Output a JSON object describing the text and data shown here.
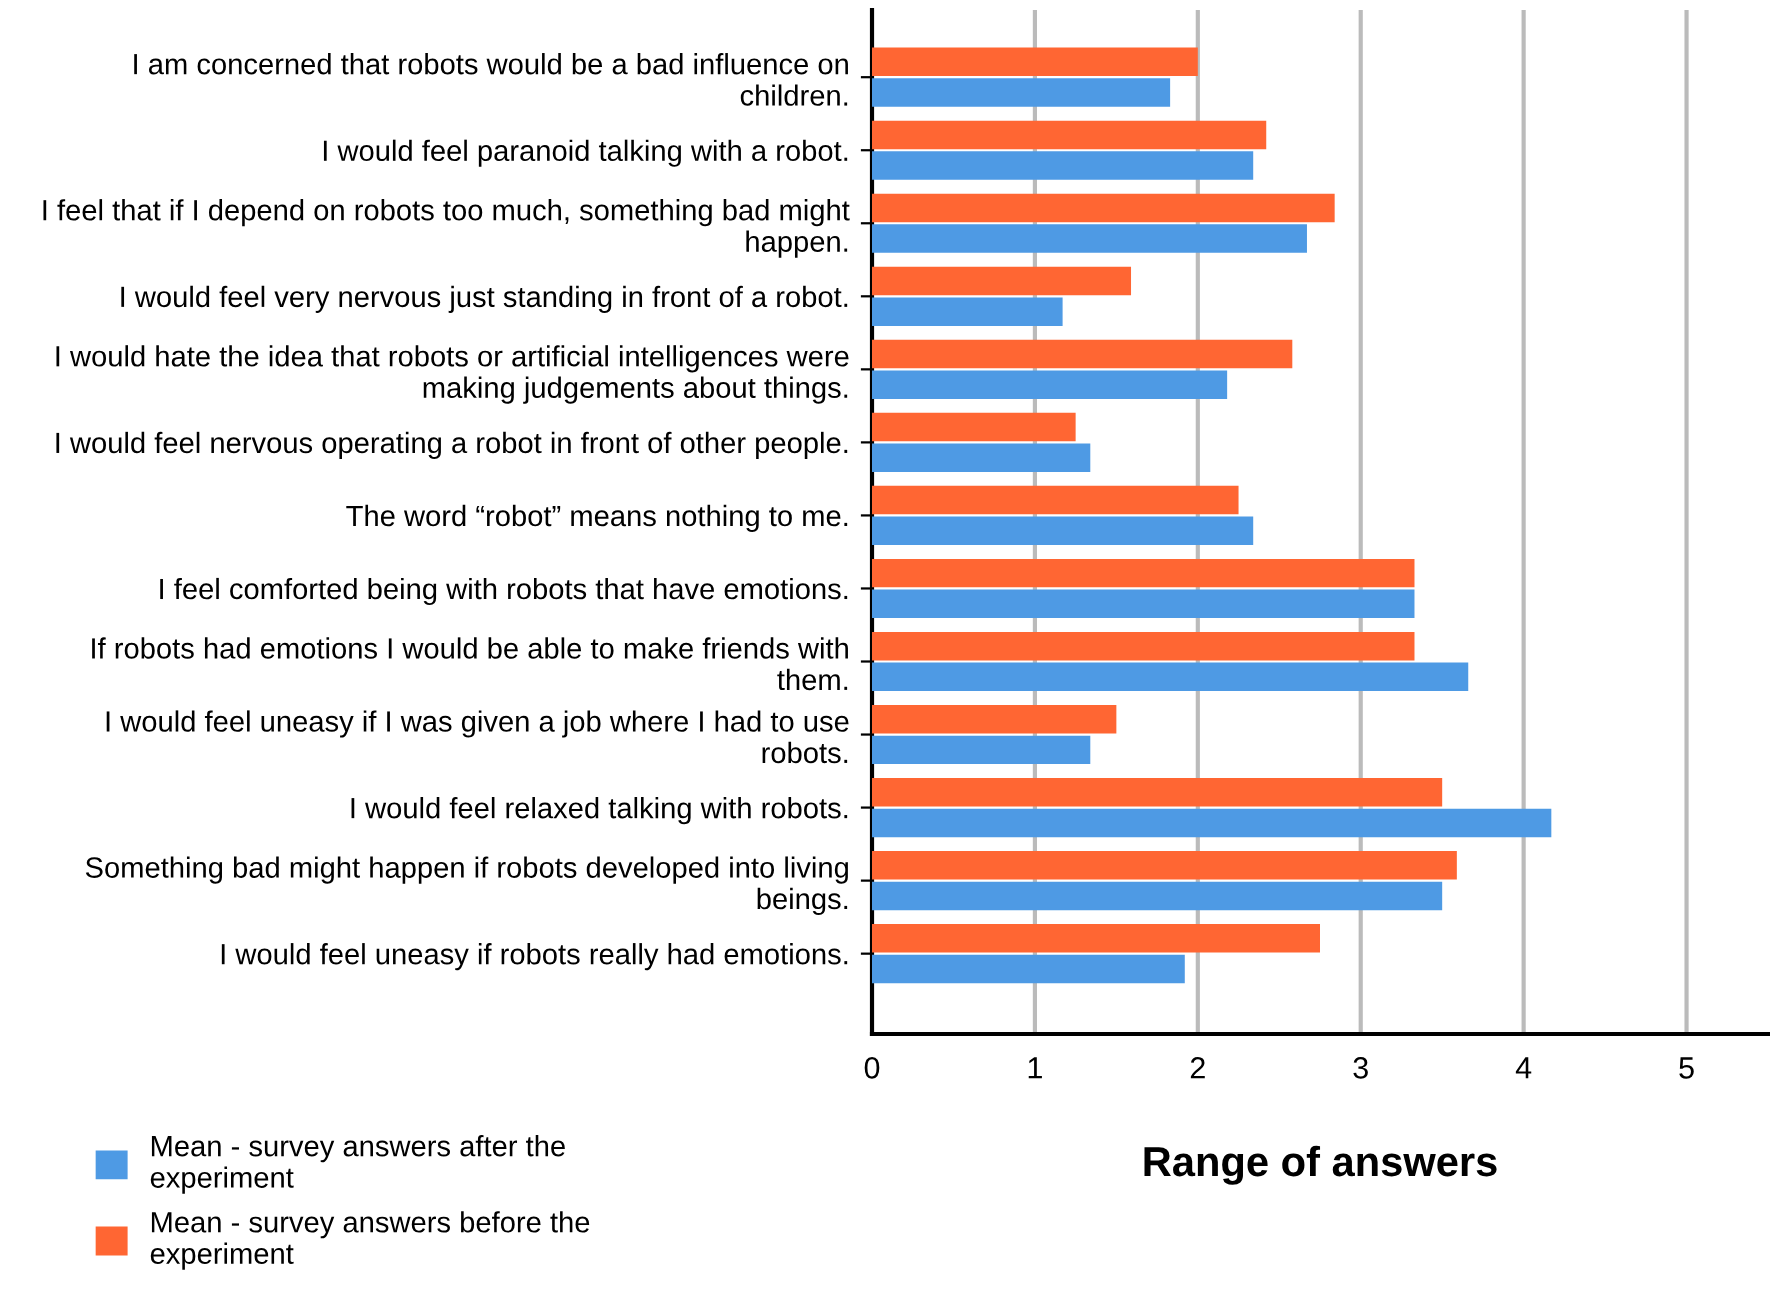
{
  "chart_data": {
    "type": "bar",
    "orientation": "horizontal",
    "xlabel": "Range of answers",
    "categories": [
      "I am concerned that robots would be a bad influence on\nchildren.",
      "I would feel paranoid talking with a robot.",
      "I feel that if I depend on robots too much, something bad might\nhappen.",
      "I would feel very nervous just standing in front of a robot.",
      "I would hate the idea that robots or artificial intelligences were\nmaking judgements about things.",
      "I would feel nervous operating a robot in front of other people.",
      "The word “robot” means nothing to me.",
      "I feel comforted being with robots that have emotions.",
      "If robots had emotions I would be able to make friends with\nthem.",
      "I would feel uneasy if I was given a job where I had to use\nrobots.",
      "I would feel relaxed talking with robots.",
      "Something bad might happen if robots developed into living\nbeings.",
      "I would feel uneasy if robots really had emotions."
    ],
    "series": [
      {
        "name": "Mean - survey answers after the\nexperiment",
        "color": "#4e9ae4",
        "values": [
          1.83,
          2.34,
          2.67,
          1.17,
          2.18,
          1.34,
          2.34,
          3.33,
          3.66,
          1.34,
          4.17,
          3.5,
          1.92
        ]
      },
      {
        "name": "Mean - survey answers before the\nexperiment",
        "color": "#ff6633",
        "values": [
          2.0,
          2.42,
          2.84,
          1.59,
          2.58,
          1.25,
          2.25,
          3.33,
          3.33,
          1.5,
          3.5,
          3.59,
          2.75
        ]
      }
    ],
    "xlim": [
      0,
      5.5
    ],
    "xticks": [
      0,
      1,
      2,
      3,
      4,
      5
    ],
    "grid": "x",
    "legend": "bottom left"
  }
}
